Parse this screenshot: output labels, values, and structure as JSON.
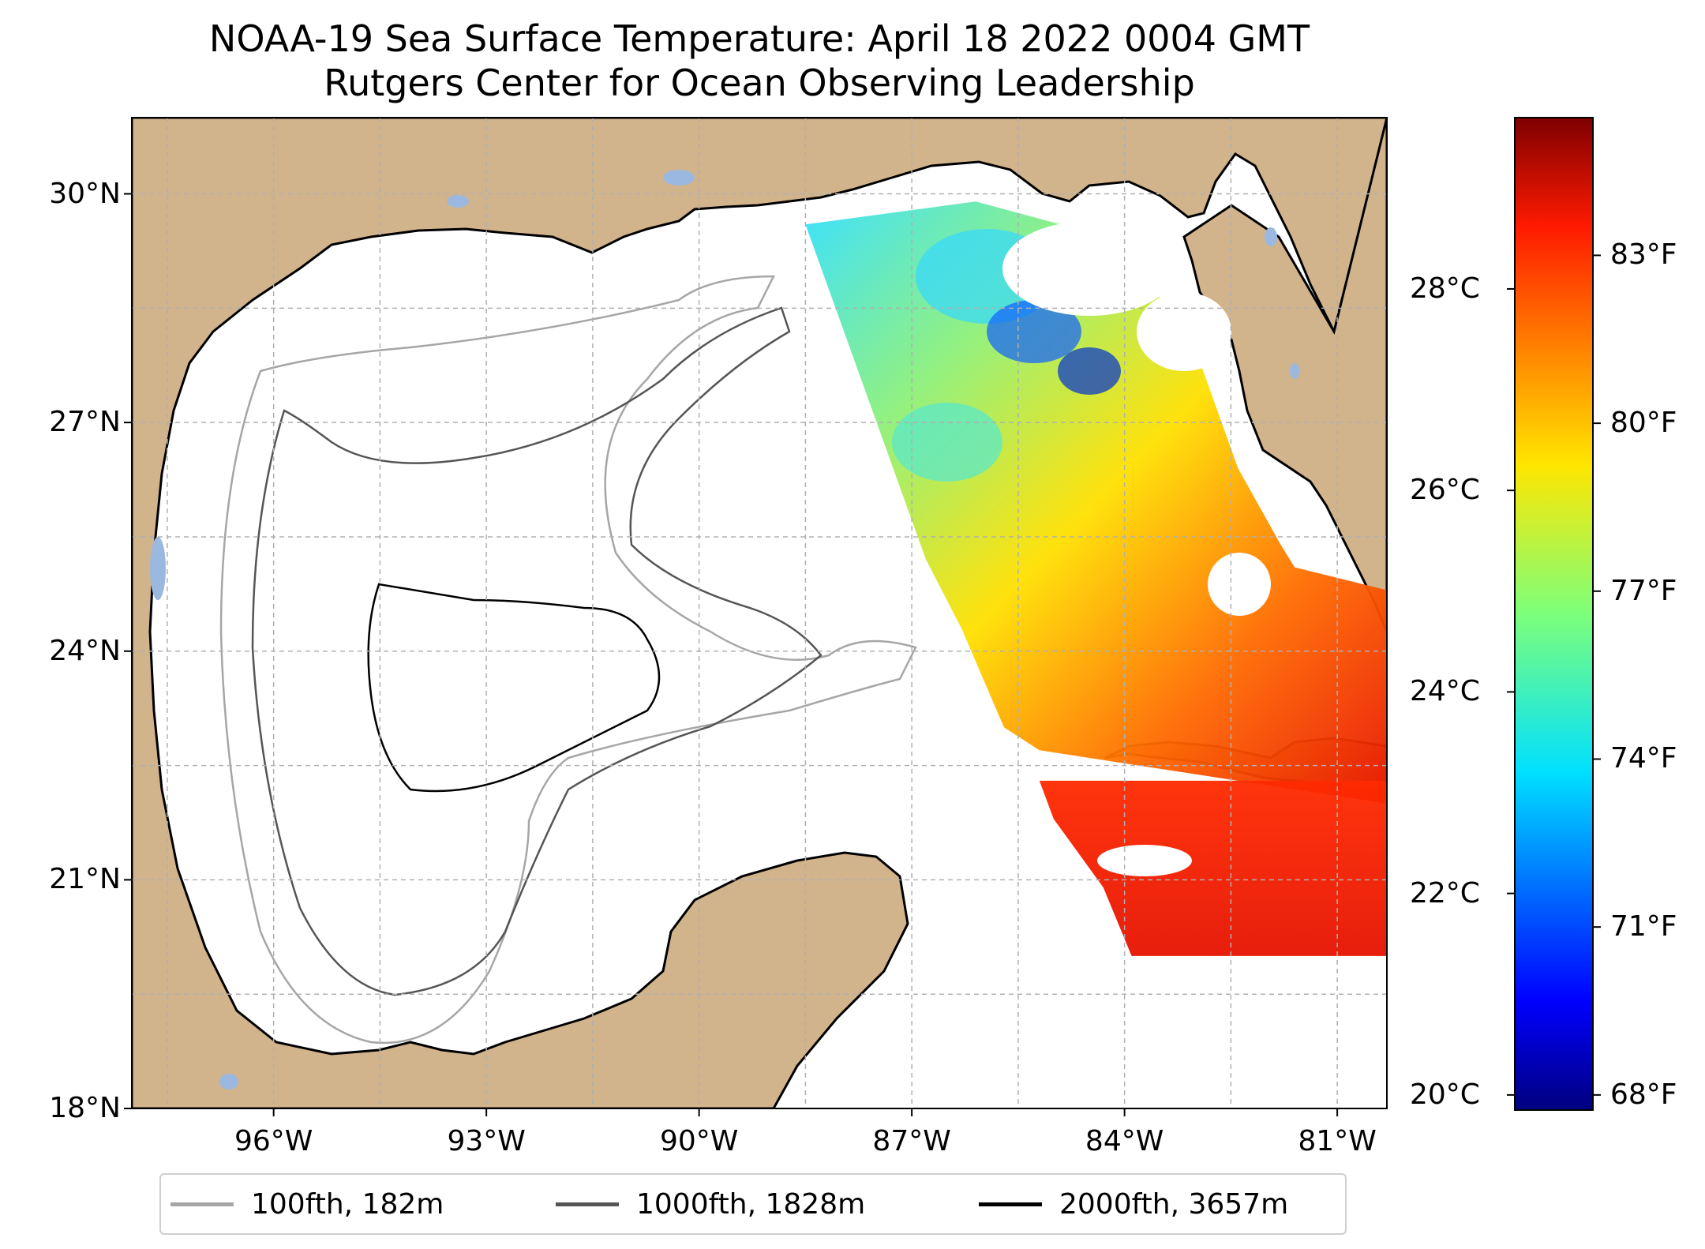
{
  "title": {
    "line1": "NOAA-19 Sea Surface Temperature: April 18 2022 0004 GMT",
    "line2": "Rutgers Center for Ocean Observing Leadership"
  },
  "map": {
    "extent": {
      "lon_min": -98.0,
      "lon_max": -80.3,
      "lat_min": 18.0,
      "lat_max": 31.0
    },
    "lat_ticks": [
      {
        "value": 30,
        "label": "30°N"
      },
      {
        "value": 27,
        "label": "27°N"
      },
      {
        "value": 24,
        "label": "24°N"
      },
      {
        "value": 21,
        "label": "21°N"
      },
      {
        "value": 18,
        "label": "18°N"
      }
    ],
    "lon_ticks": [
      {
        "value": -96,
        "label": "96°W"
      },
      {
        "value": -93,
        "label": "93°W"
      },
      {
        "value": -90,
        "label": "90°W"
      },
      {
        "value": -87,
        "label": "87°W"
      },
      {
        "value": -84,
        "label": "84°W"
      },
      {
        "value": -81,
        "label": "81°W"
      }
    ],
    "gridlines": true,
    "colors": {
      "land": "#d2b48c",
      "ocean": "#ffffff",
      "lakes": "#9bb8e0",
      "coastline": "#000000",
      "grid": "#b0b0b0",
      "contour_100fth": "#a6a6a6",
      "contour_1000fth": "#555555",
      "contour_2000fth": "#000000"
    },
    "sst_swath": {
      "description_values_degC": "Satellite swath over the eastern Gulf: cooler (~21–24°C) on the West Florida Shelf near Big Bend, warm (~26–28°C) across the Loop Current region, Florida Straits and NW Caribbean",
      "region_polygons_lonlat": {
        "swath": [
          [
            -88.5,
            29.6
          ],
          [
            -86.1,
            29.9
          ],
          [
            -84.9,
            29.6
          ],
          [
            -83.8,
            29.1
          ],
          [
            -82.9,
            27.7
          ],
          [
            -82.4,
            26.4
          ],
          [
            -81.8,
            25.4
          ],
          [
            -81.6,
            25.1
          ],
          [
            -80.3,
            24.8
          ],
          [
            -80.3,
            22.0
          ],
          [
            -85.2,
            22.7
          ],
          [
            -85.7,
            23.0
          ],
          [
            -86.3,
            24.3
          ],
          [
            -86.8,
            25.2
          ]
        ],
        "cuba_swath": [
          [
            -85.2,
            22.3
          ],
          [
            -80.3,
            22.3
          ],
          [
            -80.3,
            20.0
          ],
          [
            -83.9,
            20.0
          ],
          [
            -84.3,
            20.9
          ],
          [
            -85.0,
            21.8
          ]
        ]
      }
    }
  },
  "colorbar": {
    "colormap": "jet",
    "celsius_range": [
      19.85,
      29.7
    ],
    "celsius_ticks": [
      {
        "value": 20,
        "label": "20°C"
      },
      {
        "value": 22,
        "label": "22°C"
      },
      {
        "value": 24,
        "label": "24°C"
      },
      {
        "value": 26,
        "label": "26°C"
      },
      {
        "value": 28,
        "label": "28°C"
      }
    ],
    "fahrenheit_ticks": [
      {
        "value": 68,
        "label": "68°F"
      },
      {
        "value": 71,
        "label": "71°F"
      },
      {
        "value": 74,
        "label": "74°F"
      },
      {
        "value": 77,
        "label": "77°F"
      },
      {
        "value": 80,
        "label": "80°F"
      },
      {
        "value": 83,
        "label": "83°F"
      }
    ]
  },
  "legend": {
    "entries": [
      {
        "label": "100fth, 182m",
        "color": "#a6a6a6"
      },
      {
        "label": "1000fth, 1828m",
        "color": "#555555"
      },
      {
        "label": "2000fth, 3657m",
        "color": "#000000"
      }
    ]
  }
}
